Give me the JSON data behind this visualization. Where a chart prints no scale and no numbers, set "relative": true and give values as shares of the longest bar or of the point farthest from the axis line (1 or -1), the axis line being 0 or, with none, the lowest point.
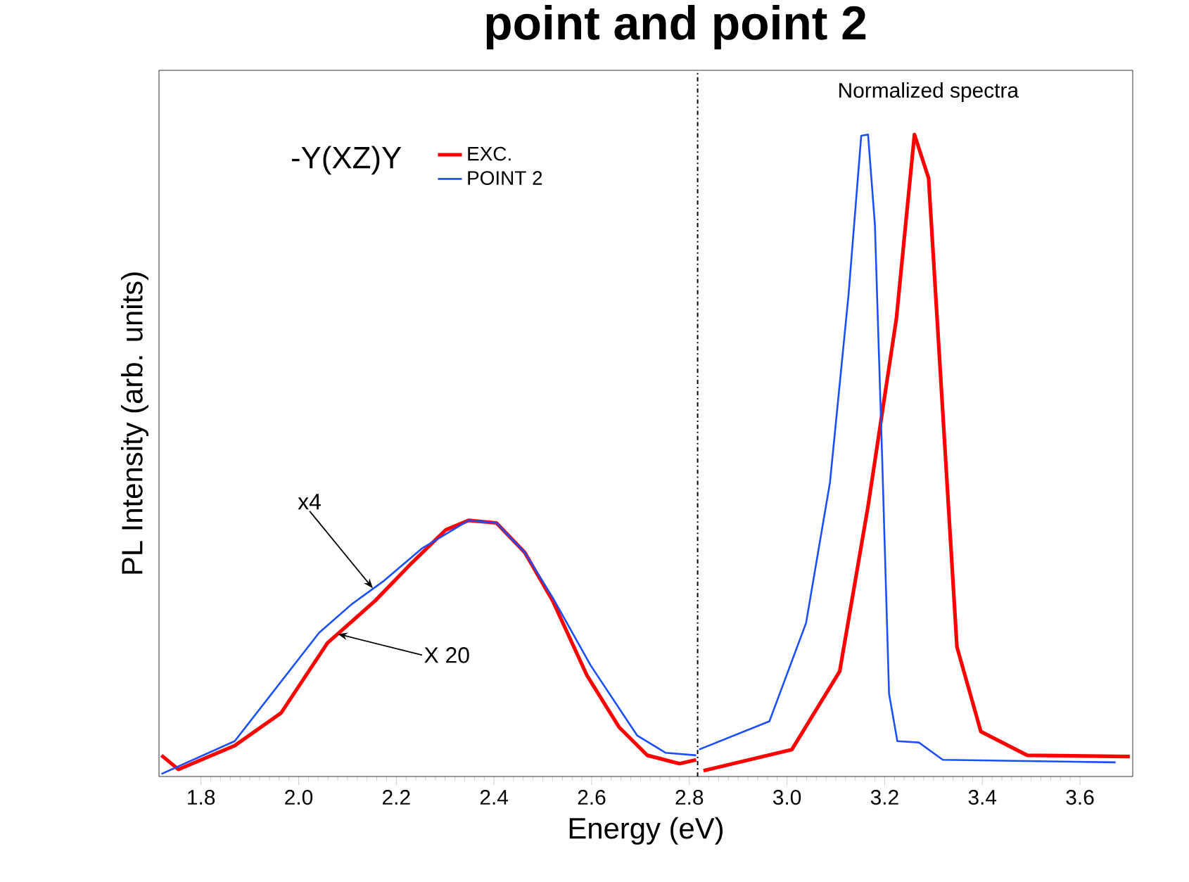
{
  "chart_data": {
    "type": "line",
    "title": "point  and point 2",
    "xlabel": "Energy (eV)",
    "ylabel": "PL Intensity (arb. units)",
    "relative": true,
    "xlim": [
      1.714,
      3.708
    ],
    "xticks": [
      1.8,
      {
        "value": 2,
        "label": "2.0"
      },
      2.2,
      2.4,
      2.6,
      2.8,
      {
        "value": 3,
        "label": "3.0"
      },
      3.2,
      3.4,
      3.6
    ],
    "legend": "top left",
    "annotations": [
      "-Y(XZ)Y",
      "Normalized spectra",
      {
        "text": "x4",
        "x": 2.152,
        "y": 0.293
      },
      {
        "text": "X 20",
        "x": 2.08,
        "y": 0.222
      }
    ],
    "ref_lines": [
      {
        "axis": "x",
        "value": 2.817,
        "line_style": "dashed",
        "color": "#000000"
      }
    ],
    "series": [
      {
        "name": "EXC.",
        "color": "#ff0000",
        "x": [
          1.719,
          1.754,
          1.869,
          1.964,
          2.059,
          2.157,
          2.232,
          2.301,
          2.348,
          2.405,
          2.463,
          2.52,
          2.59,
          2.656,
          2.714,
          2.78,
          2.814,
          2.817,
          2.829,
          3.01,
          3.108,
          3.166,
          3.224,
          3.261,
          3.29,
          3.319,
          3.348,
          3.397,
          3.492,
          3.702
        ],
        "values": [
          0.033,
          0.011,
          0.048,
          0.099,
          0.208,
          0.274,
          0.333,
          0.384,
          0.399,
          0.395,
          0.349,
          0.274,
          0.158,
          0.077,
          0.033,
          0.02,
          0.026,
          null,
          0.009,
          0.042,
          0.164,
          0.421,
          0.713,
          1.0,
          0.932,
          0.568,
          0.202,
          0.07,
          0.033,
          0.031
        ]
      },
      {
        "name": "POINT 2",
        "color": "#1a4fff",
        "x": [
          1.719,
          1.869,
          2.042,
          2.108,
          2.175,
          2.252,
          2.348,
          2.405,
          2.463,
          2.52,
          2.598,
          2.693,
          2.751,
          2.814,
          2.817,
          2.82,
          2.964,
          3.039,
          3.088,
          3.126,
          3.152,
          3.166,
          3.18,
          3.195,
          3.209,
          3.226,
          3.27,
          3.319,
          3.673
        ],
        "values": [
          0.004,
          0.055,
          0.224,
          0.268,
          0.305,
          0.355,
          0.399,
          0.395,
          0.349,
          0.279,
          0.173,
          0.064,
          0.037,
          0.033,
          null,
          0.042,
          0.086,
          0.239,
          0.458,
          0.75,
          0.998,
          1.0,
          0.86,
          0.493,
          0.129,
          0.055,
          0.053,
          0.026,
          0.022
        ]
      }
    ]
  }
}
